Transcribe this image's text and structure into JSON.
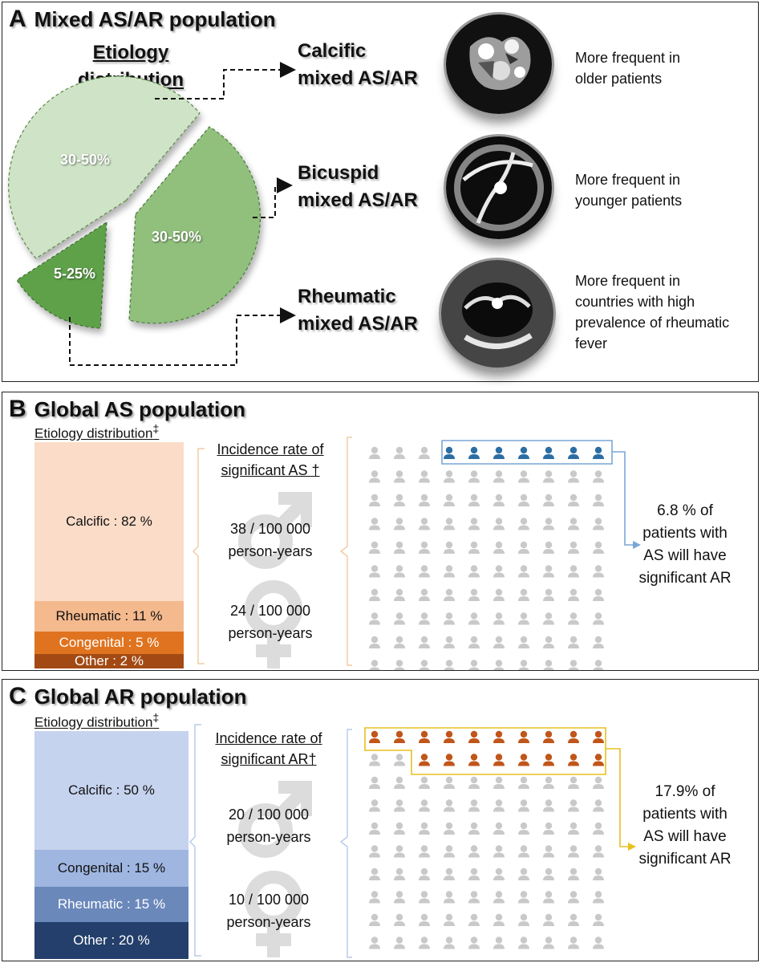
{
  "panelA": {
    "letter": "A",
    "title": "Mixed AS/AR population",
    "etiology_title": [
      "Etiology",
      "distribution"
    ],
    "pie": {
      "type": "pie",
      "slices": [
        {
          "label": "30-50%",
          "color": "#cfe3c6"
        },
        {
          "label": "30-50%",
          "color": "#90c07b"
        },
        {
          "label": "5-25%",
          "color": "#5fa14a"
        }
      ]
    },
    "etiologies": [
      {
        "name": [
          "Calcific",
          "mixed AS/AR"
        ],
        "note": [
          "More frequent in",
          "older patients"
        ]
      },
      {
        "name": [
          "Bicuspid",
          "mixed AS/AR"
        ],
        "note": [
          "More frequent in",
          "younger patients"
        ]
      },
      {
        "name": [
          "Rheumatic",
          "mixed AS/AR"
        ],
        "note": [
          "More frequent in",
          "countries with high",
          "prevalence of rheumatic",
          "fever"
        ]
      }
    ]
  },
  "panelB": {
    "letter": "B",
    "title": "Global AS population",
    "dist_title": "Etiology distribution",
    "dist_mark": "‡",
    "bars": [
      {
        "label": "Calcific : 82 %",
        "color": "#fadcc8"
      },
      {
        "label": "Rheumatic : 11 %",
        "color": "#f5b98e"
      },
      {
        "label": "Congenital : 5 %",
        "color": "#e0731f"
      },
      {
        "label": "Other : 2 %",
        "color": "#a34a14"
      }
    ],
    "incidence_title": [
      "Incidence rate of",
      "significant AS †"
    ],
    "male": [
      "38 / 100 000",
      "person-years"
    ],
    "female": [
      "24 / 100 000",
      "person-years"
    ],
    "stat": [
      "6.8 % of",
      "patients with",
      "AS will have",
      "significant AR"
    ],
    "highlight_color": "#2b6ea3",
    "frame_color": "#7aa6d6"
  },
  "panelC": {
    "letter": "C",
    "title": "Global AR population",
    "dist_title": "Etiology distribution",
    "dist_mark": "‡",
    "bars": [
      {
        "label": "Calcific : 50 %",
        "color": "#c6d3ee"
      },
      {
        "label": "Congenital : 15 %",
        "color": "#9fb6e1"
      },
      {
        "label": "Rheumatic : 15 %",
        "color": "#6b88bb"
      },
      {
        "label": "Other : 20 %",
        "color": "#243f6b"
      }
    ],
    "incidence_title": [
      "Incidence rate of",
      "significant AR†"
    ],
    "male": [
      "20 / 100 000",
      "person-years"
    ],
    "female": [
      "10 / 100 000",
      "person-years"
    ],
    "stat": [
      "17.9% of",
      "patients with",
      "AS will have",
      "significant AR"
    ],
    "highlight_color": "#c0561a",
    "frame_color": "#e8c020"
  }
}
